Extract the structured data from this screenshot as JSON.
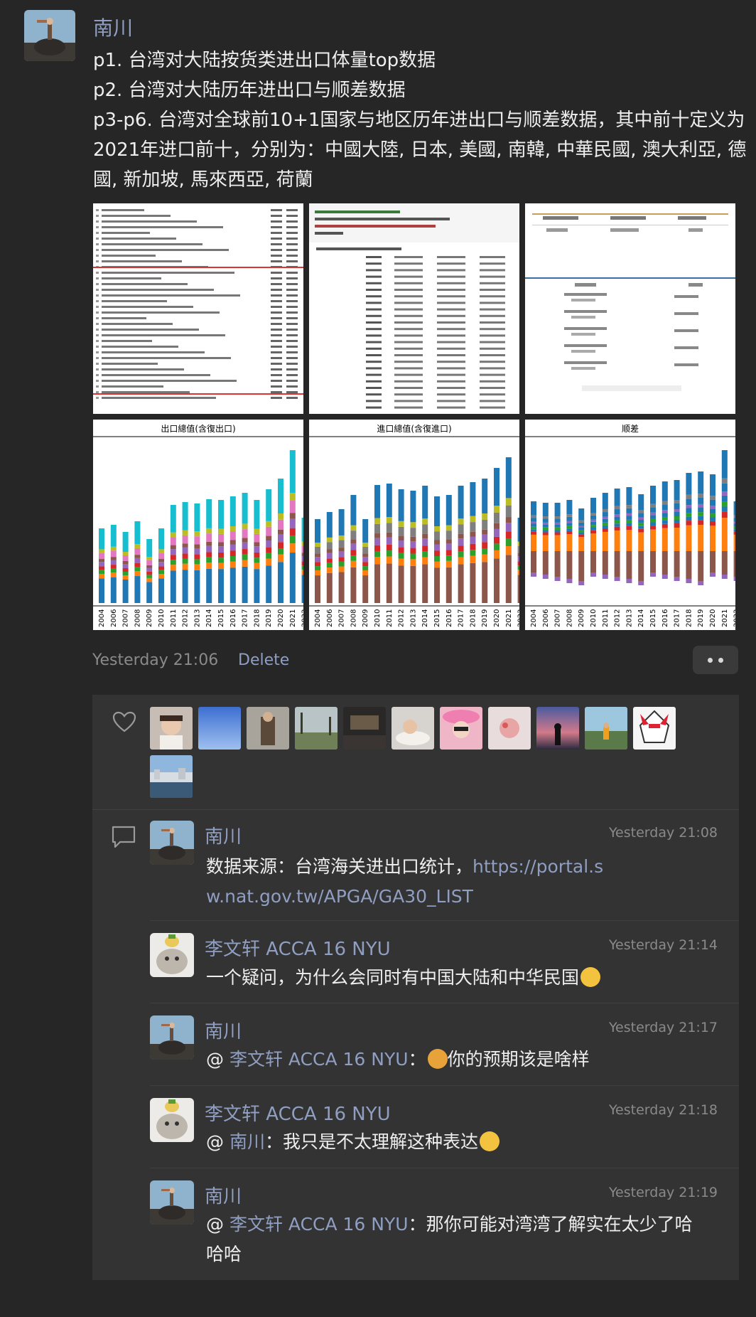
{
  "post": {
    "author": "南川",
    "lines": [
      "p1. 台湾对大陆按货类进出口体量top数据",
      "p2. 台湾对大陆历年进出口与顺差数据",
      "p3-p6. 台湾对全球前10+1国家与地区历年进出口与顺差数据，其中前十定义为2021年进口前十，分别为：中國大陸, 日本, 美國, 南韓, 中華民國, 澳大利亞, 德國, 新加坡, 馬來西亞, 荷蘭"
    ],
    "time": "Yesterday 21:06",
    "delete_label": "Delete"
  },
  "thumbs": {
    "p4_title": "出口總值(含復出口)",
    "p5_title": "進口總值(含復進口)",
    "p6_title": "顺差",
    "years": [
      "2004",
      "2006",
      "2007",
      "2008",
      "2009",
      "2010",
      "2011",
      "2012",
      "2013",
      "2014",
      "2015",
      "2016",
      "2017",
      "2018",
      "2019",
      "2020",
      "2021",
      "2022"
    ]
  },
  "likes": {
    "count_avatars": 12
  },
  "comments": [
    {
      "name": "南川",
      "time": "Yesterday 21:08",
      "text_prefix": "数据来源：台湾海关进出口统计，",
      "link": "https://portal.sw.nat.gov.tw/APGA/GA30_LIST"
    },
    {
      "name": "李文轩 ACCA 16 NYU",
      "time": "Yesterday 21:14",
      "text": "一个疑问，为什么会同时有中国大陆和中华民国"
    },
    {
      "name": "南川",
      "time": "Yesterday 21:17",
      "at": "@",
      "mention": "李文轩 ACCA 16 NYU",
      "colon": "：",
      "text": "你的预期该是啥样"
    },
    {
      "name": "李文轩 ACCA 16 NYU",
      "time": "Yesterday 21:18",
      "at": "@",
      "mention": "南川",
      "colon": "：",
      "text": "我只是不太理解这种表达"
    },
    {
      "name": "南川",
      "time": "Yesterday 21:19",
      "at": "@",
      "mention": "李文轩 ACCA 16 NYU",
      "colon": "：",
      "text": "那你可能对湾湾了解实在太少了哈哈哈"
    }
  ],
  "colors": {
    "background": "#262626",
    "panel": "#333333",
    "name_blue": "#8f9ec1"
  }
}
